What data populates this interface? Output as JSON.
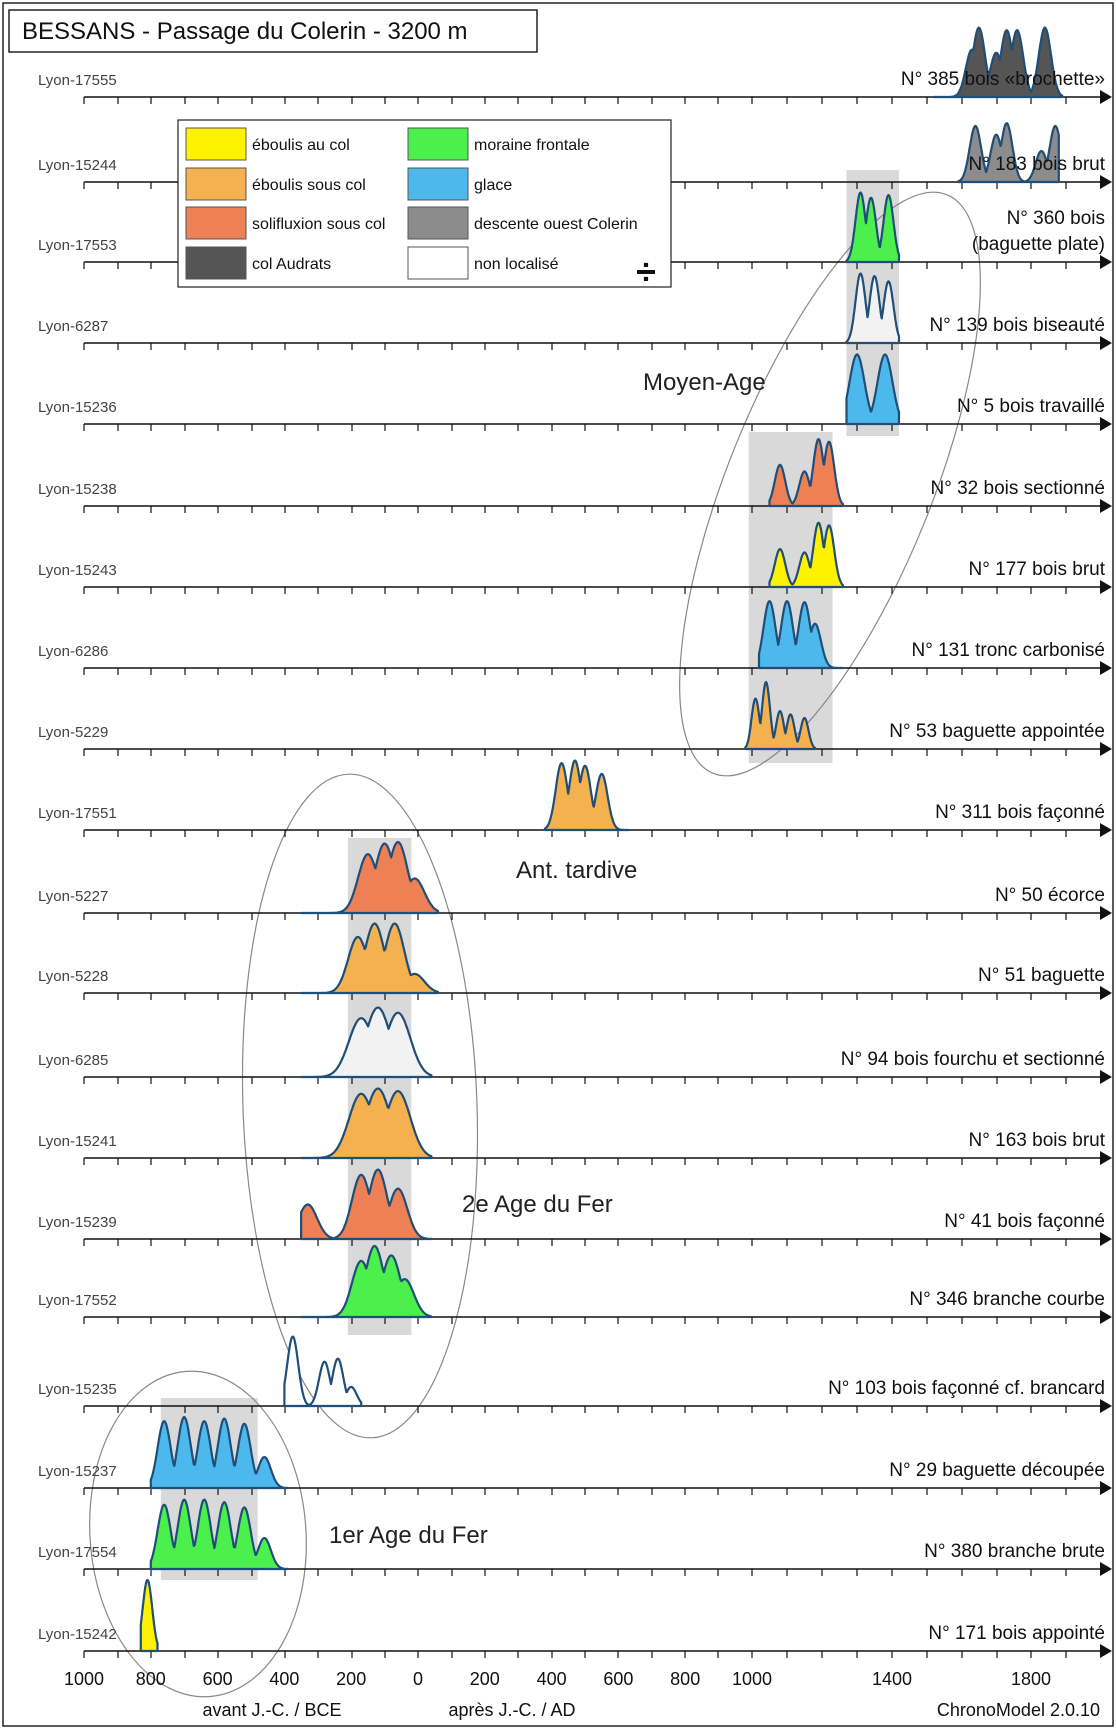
{
  "chart_data": {
    "type": "area",
    "title": "BESSANS - Passage du Colerin - 3200 m",
    "software": "ChronoModel 2.0.10",
    "axis": {
      "min": -1000,
      "max": 2000,
      "tick_labels": [
        "1000",
        "800",
        "600",
        "400",
        "200",
        "0",
        "200",
        "400",
        "600",
        "800",
        "1000",
        "1400",
        "1800"
      ],
      "tick_values": [
        -1000,
        -800,
        -600,
        -400,
        -200,
        0,
        200,
        400,
        600,
        800,
        1000,
        1400,
        1800
      ],
      "caption_bce": "avant J.-C. / BCE",
      "caption_ad": "après J.-C. / AD"
    },
    "legend": {
      "items": [
        {
          "label": "éboulis au col",
          "color": "#fff200"
        },
        {
          "label": "moraine frontale",
          "color": "#4cf04c"
        },
        {
          "label": "éboulis sous col",
          "color": "#f5b050"
        },
        {
          "label": "glace",
          "color": "#4db8ec"
        },
        {
          "label": "solifluxion sous col",
          "color": "#ee8055"
        },
        {
          "label": "descente ouest Colerin",
          "color": "#8c8c8c"
        },
        {
          "label": "col Audrats",
          "color": "#555555"
        },
        {
          "label": "non localisé",
          "color": "#ffffff"
        }
      ],
      "symbol": "÷"
    },
    "series": [
      {
        "name": "Lyon-17555",
        "label": "N° 385 bois «brochette»",
        "color": "#555555",
        "peaks": [
          [
            1630,
            0.55
          ],
          [
            1650,
            0.95
          ],
          [
            1700,
            0.5
          ],
          [
            1730,
            0.9
          ],
          [
            1760,
            0.9
          ],
          [
            1840,
            0.95
          ]
        ],
        "range": [
          1520,
          1890
        ]
      },
      {
        "name": "Lyon-15244",
        "label": "N° 183 bois brut",
        "color": "#8c8c8c",
        "peaks": [
          [
            1640,
            0.7
          ],
          [
            1700,
            0.55
          ],
          [
            1730,
            0.75
          ],
          [
            1830,
            0.3
          ],
          [
            1870,
            0.7
          ]
        ],
        "range": [
          1590,
          1880
        ]
      },
      {
        "name": "Lyon-17553",
        "label": "N° 360 bois (baguette plate)",
        "color": "#4cf04c",
        "peaks": [
          [
            1310,
            0.95
          ],
          [
            1340,
            0.85
          ],
          [
            1390,
            0.9
          ]
        ],
        "range": [
          1270,
          1420
        ]
      },
      {
        "name": "Lyon-6287",
        "label": "N° 139 bois biseauté",
        "color": "#f2f2f2",
        "peaks": [
          [
            1310,
            0.95
          ],
          [
            1350,
            0.9
          ],
          [
            1390,
            0.8
          ]
        ],
        "range": [
          1270,
          1420
        ]
      },
      {
        "name": "Lyon-15236",
        "label": "N° 5 bois travaillé",
        "color": "#4db8ec",
        "peaks": [
          [
            1300,
            0.95
          ],
          [
            1380,
            0.95
          ]
        ],
        "range": [
          1270,
          1420
        ]
      },
      {
        "name": "Lyon-15238",
        "label": "N° 32 bois sectionné",
        "color": "#ee8055",
        "peaks": [
          [
            1080,
            0.45
          ],
          [
            1150,
            0.35
          ],
          [
            1190,
            0.9
          ],
          [
            1220,
            0.85
          ]
        ],
        "range": [
          1050,
          1260
        ]
      },
      {
        "name": "Lyon-15243",
        "label": "N° 177 bois brut",
        "color": "#fff200",
        "peaks": [
          [
            1080,
            0.4
          ],
          [
            1150,
            0.35
          ],
          [
            1190,
            0.85
          ],
          [
            1220,
            0.8
          ]
        ],
        "range": [
          1050,
          1260
        ]
      },
      {
        "name": "Lyon-6286",
        "label": "N° 131 tronc carbonisé",
        "color": "#4db8ec",
        "peaks": [
          [
            1050,
            0.9
          ],
          [
            1100,
            0.9
          ],
          [
            1150,
            0.88
          ],
          [
            1180,
            0.5
          ]
        ],
        "range": [
          1020,
          1260
        ]
      },
      {
        "name": "Lyon-5229",
        "label": "N° 53 baguette appointée",
        "color": "#f5b050",
        "peaks": [
          [
            1010,
            0.6
          ],
          [
            1040,
            0.9
          ],
          [
            1080,
            0.4
          ],
          [
            1110,
            0.35
          ],
          [
            1150,
            0.3
          ]
        ],
        "range": [
          980,
          1180
        ]
      },
      {
        "name": "Lyon-17551",
        "label": "N° 311 bois façonné",
        "color": "#f5b050",
        "peaks": [
          [
            430,
            0.9
          ],
          [
            470,
            0.95
          ],
          [
            500,
            0.85
          ],
          [
            550,
            0.7
          ]
        ],
        "range": [
          380,
          630
        ]
      },
      {
        "name": "Lyon-5227",
        "label": "N° 50 écorce",
        "color": "#ee8055",
        "peaks": [
          [
            -150,
            0.75
          ],
          [
            -100,
            0.95
          ],
          [
            -60,
            0.98
          ],
          [
            -10,
            0.35
          ]
        ],
        "range": [
          -350,
          60
        ]
      },
      {
        "name": "Lyon-5228",
        "label": "N° 51 baguette",
        "color": "#f5b050",
        "peaks": [
          [
            -180,
            0.7
          ],
          [
            -130,
            0.95
          ],
          [
            -70,
            0.95
          ],
          [
            -10,
            0.15
          ]
        ],
        "range": [
          -350,
          60
        ]
      },
      {
        "name": "Lyon-6285",
        "label": "N° 94 bois fourchu et sectionné",
        "color": "#f2f2f2",
        "peaks": [
          [
            -170,
            0.75
          ],
          [
            -120,
            0.95
          ],
          [
            -60,
            0.85
          ]
        ],
        "range": [
          -350,
          40
        ]
      },
      {
        "name": "Lyon-15241",
        "label": "N° 163 bois brut",
        "color": "#f5b050",
        "peaks": [
          [
            -170,
            0.85
          ],
          [
            -120,
            0.95
          ],
          [
            -60,
            0.9
          ]
        ],
        "range": [
          -350,
          40
        ]
      },
      {
        "name": "Lyon-15239",
        "label": "N° 41 bois façonné",
        "color": "#ee8055",
        "peaks": [
          [
            -330,
            0.35
          ],
          [
            -170,
            0.85
          ],
          [
            -120,
            0.95
          ],
          [
            -60,
            0.6
          ]
        ],
        "range": [
          -350,
          40
        ]
      },
      {
        "name": "Lyon-17552",
        "label": "N° 346 branche courbe",
        "color": "#4cf04c",
        "peaks": [
          [
            -170,
            0.7
          ],
          [
            -130,
            0.98
          ],
          [
            -80,
            0.8
          ],
          [
            -40,
            0.4
          ]
        ],
        "range": [
          -350,
          40
        ]
      },
      {
        "name": "Lyon-15235",
        "label": "N° 103 bois façonné cf. brancard",
        "color": "#ffffff",
        "peaks": [
          [
            -375,
            0.95
          ],
          [
            -280,
            0.5
          ],
          [
            -240,
            0.55
          ],
          [
            -200,
            0.15
          ]
        ],
        "range": [
          -400,
          -170
        ]
      },
      {
        "name": "Lyon-15237",
        "label": "N° 29 baguette découpée",
        "color": "#4db8ec",
        "peaks": [
          [
            -760,
            0.9
          ],
          [
            -700,
            0.98
          ],
          [
            -640,
            0.9
          ],
          [
            -580,
            0.95
          ],
          [
            -520,
            0.85
          ],
          [
            -460,
            0.3
          ]
        ],
        "range": [
          -800,
          -390
        ]
      },
      {
        "name": "Lyon-17554",
        "label": "N° 380 branche brute",
        "color": "#4cf04c",
        "peaks": [
          [
            -760,
            0.85
          ],
          [
            -700,
            0.95
          ],
          [
            -640,
            0.95
          ],
          [
            -580,
            0.9
          ],
          [
            -520,
            0.8
          ],
          [
            -460,
            0.3
          ]
        ],
        "range": [
          -800,
          -390
        ]
      },
      {
        "name": "Lyon-15242",
        "label": "N° 171 bois appointé",
        "color": "#fff200",
        "peaks": [
          [
            -810,
            0.98
          ]
        ],
        "range": [
          -830,
          -780
        ]
      }
    ],
    "periods": [
      {
        "label": "Moyen-Age"
      },
      {
        "label": "Ant. tardive"
      },
      {
        "label": "2e Age du Fer"
      },
      {
        "label": "1er Age du Fer"
      }
    ]
  }
}
